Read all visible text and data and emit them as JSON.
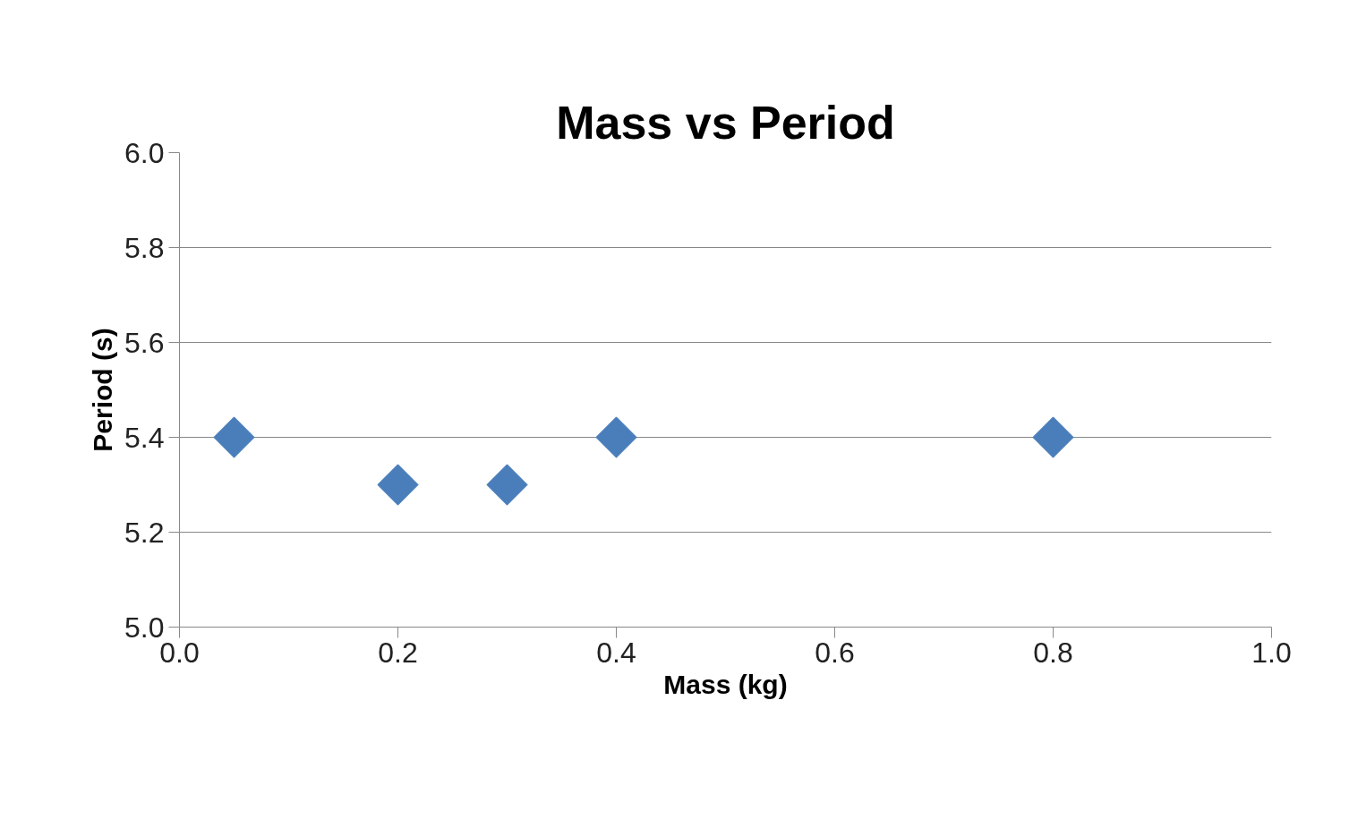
{
  "chart_data": {
    "type": "scatter",
    "title": "Mass vs Period",
    "xlabel": "Mass (kg)",
    "ylabel": "Period (s)",
    "x": [
      0.05,
      0.2,
      0.3,
      0.4,
      0.8
    ],
    "series": [
      {
        "color": "#4a7ebb",
        "values": [
          5.4,
          5.3,
          5.3,
          5.4,
          5.4
        ]
      }
    ],
    "xlim": [
      0.0,
      1.0
    ],
    "xticks": [
      {
        "value": 0,
        "label": "0.0"
      },
      0.2,
      0.4,
      0.6,
      0.8,
      {
        "value": 1,
        "label": "1.0"
      }
    ],
    "ylim": [
      5.0,
      6.0
    ],
    "yticks": [
      {
        "value": 5,
        "label": "5.0"
      },
      5.2,
      5.4,
      5.6,
      5.8,
      {
        "value": 6,
        "label": "6.0"
      }
    ],
    "grid": "y",
    "marker": "diamond"
  }
}
